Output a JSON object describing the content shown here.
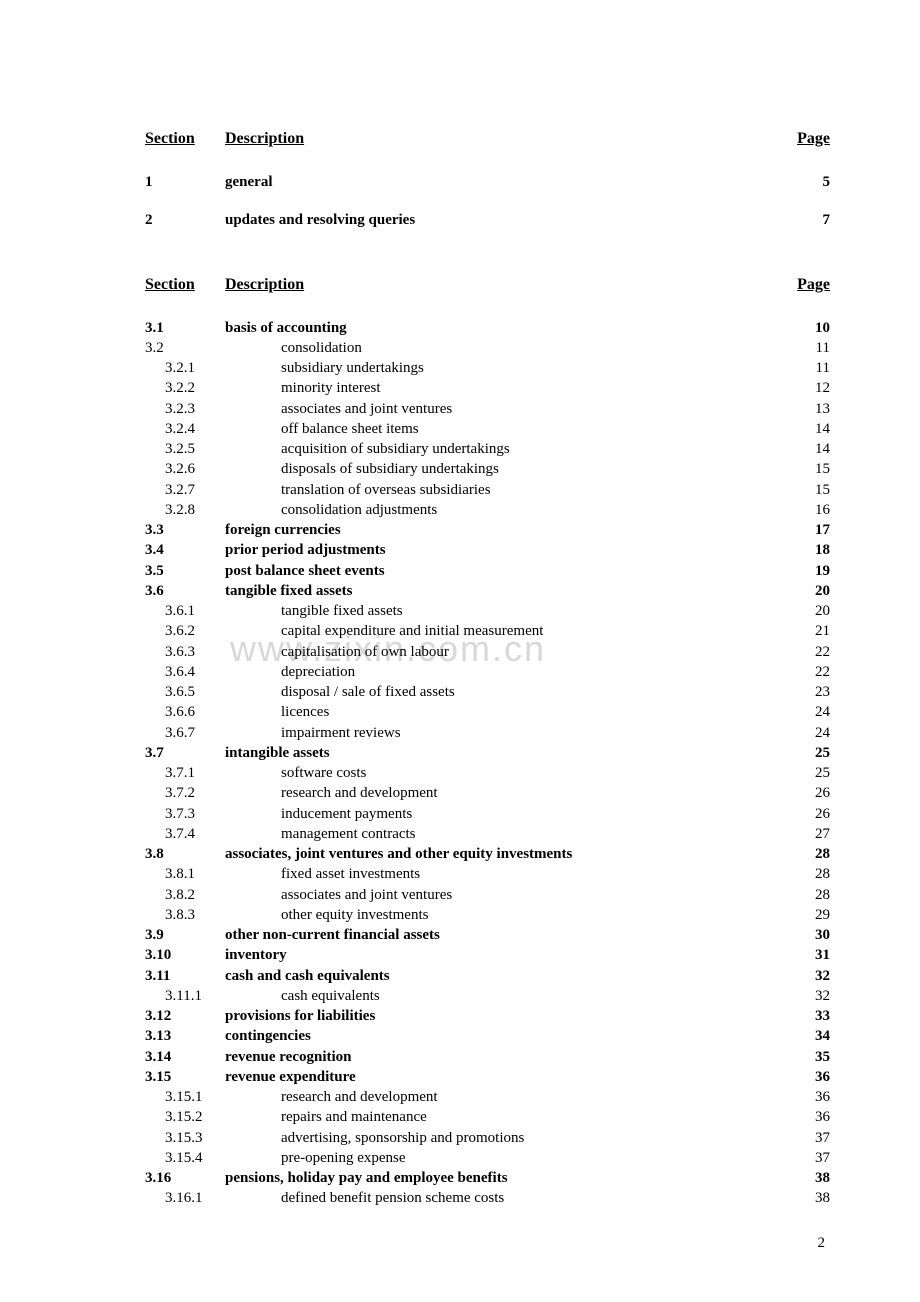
{
  "watermark_text": "www.zixin.com.cn",
  "page_number": "2",
  "headers": {
    "section": "Section",
    "description": "Description",
    "page": "Page"
  },
  "block1": [
    {
      "section": "1",
      "description": "general",
      "page": "5",
      "bold": true
    },
    {
      "section": "2",
      "description": "updates and resolving queries",
      "page": "7",
      "bold": true
    }
  ],
  "block2": [
    {
      "section": "3.1",
      "description": "basis of accounting",
      "page": "10",
      "bold": true,
      "indent": 0
    },
    {
      "section": "3.2",
      "description": "consolidation",
      "page": "11",
      "bold": false,
      "indent": 0
    },
    {
      "section": "3.2.1",
      "description": "subsidiary undertakings",
      "page": "11",
      "bold": false,
      "indent": 1
    },
    {
      "section": "3.2.2",
      "description": "minority interest",
      "page": "12",
      "bold": false,
      "indent": 1
    },
    {
      "section": "3.2.3",
      "description": "associates and joint ventures",
      "page": "13",
      "bold": false,
      "indent": 1
    },
    {
      "section": "3.2.4",
      "description": "off balance sheet items",
      "page": "14",
      "bold": false,
      "indent": 1
    },
    {
      "section": "3.2.5",
      "description": "acquisition of subsidiary undertakings",
      "page": "14",
      "bold": false,
      "indent": 1
    },
    {
      "section": "3.2.6",
      "description": "disposals of subsidiary undertakings",
      "page": "15",
      "bold": false,
      "indent": 1
    },
    {
      "section": "3.2.7",
      "description": "translation of overseas subsidiaries",
      "page": "15",
      "bold": false,
      "indent": 1
    },
    {
      "section": "3.2.8",
      "description": "consolidation adjustments",
      "page": "16",
      "bold": false,
      "indent": 1
    },
    {
      "section": "3.3",
      "description": "foreign currencies",
      "page": "17",
      "bold": true,
      "indent": 0
    },
    {
      "section": "3.4",
      "description": "prior period adjustments",
      "page": "18",
      "bold": true,
      "indent": 0
    },
    {
      "section": "3.5",
      "description": "post balance sheet events",
      "page": "19",
      "bold": true,
      "indent": 0
    },
    {
      "section": "3.6",
      "description": "tangible fixed assets",
      "page": "20",
      "bold": true,
      "indent": 0
    },
    {
      "section": "3.6.1",
      "description": "tangible fixed assets",
      "page": "20",
      "bold": false,
      "indent": 1
    },
    {
      "section": "3.6.2",
      "description": "capital expenditure and initial measurement",
      "page": "21",
      "bold": false,
      "indent": 1
    },
    {
      "section": "3.6.3",
      "description": "capitalisation of own labour",
      "page": "22",
      "bold": false,
      "indent": 1
    },
    {
      "section": "3.6.4",
      "description": "depreciation",
      "page": "22",
      "bold": false,
      "indent": 1
    },
    {
      "section": "3.6.5",
      "description": "disposal / sale of fixed assets",
      "page": "23",
      "bold": false,
      "indent": 1
    },
    {
      "section": "3.6.6",
      "description": "licences",
      "page": "24",
      "bold": false,
      "indent": 1
    },
    {
      "section": "3.6.7",
      "description": "impairment reviews",
      "page": "24",
      "bold": false,
      "indent": 1
    },
    {
      "section": "3.7",
      "description": "intangible assets",
      "page": "25",
      "bold": true,
      "indent": 0
    },
    {
      "section": "3.7.1",
      "description": "software costs",
      "page": "25",
      "bold": false,
      "indent": 1
    },
    {
      "section": "3.7.2",
      "description": "research and development",
      "page": "26",
      "bold": false,
      "indent": 1
    },
    {
      "section": "3.7.3",
      "description": "inducement payments",
      "page": "26",
      "bold": false,
      "indent": 1
    },
    {
      "section": "3.7.4",
      "description": "management contracts",
      "page": "27",
      "bold": false,
      "indent": 1
    },
    {
      "section": "3.8",
      "description": "associates, joint ventures and other equity investments",
      "page": "28",
      "bold": true,
      "indent": 0
    },
    {
      "section": "3.8.1",
      "description": "fixed asset investments",
      "page": "28",
      "bold": false,
      "indent": 1
    },
    {
      "section": "3.8.2",
      "description": "associates and joint ventures",
      "page": "28",
      "bold": false,
      "indent": 1
    },
    {
      "section": "3.8.3",
      "description": "other equity investments",
      "page": "29",
      "bold": false,
      "indent": 1
    },
    {
      "section": "3.9",
      "description": "other non-current financial assets",
      "page": "30",
      "bold": true,
      "indent": 0
    },
    {
      "section": "3.10",
      "description": "inventory",
      "page": "31",
      "bold": true,
      "indent": 0
    },
    {
      "section": "3.11",
      "description": "cash and cash equivalents",
      "page": "32",
      "bold": true,
      "indent": 0
    },
    {
      "section": "3.11.1",
      "description": "cash equivalents",
      "page": "32",
      "bold": false,
      "indent": 1
    },
    {
      "section": "3.12",
      "description": "provisions for liabilities",
      "page": "33",
      "bold": true,
      "indent": 0
    },
    {
      "section": "3.13",
      "description": "contingencies",
      "page": "34",
      "bold": true,
      "indent": 0
    },
    {
      "section": "3.14",
      "description": "revenue recognition",
      "page": "35",
      "bold": true,
      "indent": 0
    },
    {
      "section": "3.15",
      "description": "revenue expenditure",
      "page": "36",
      "bold": true,
      "indent": 0
    },
    {
      "section": "3.15.1",
      "description": "research and development",
      "page": "36",
      "bold": false,
      "indent": 1
    },
    {
      "section": "3.15.2",
      "description": "repairs and maintenance",
      "page": "36",
      "bold": false,
      "indent": 1
    },
    {
      "section": "3.15.3",
      "description": "advertising, sponsorship and promotions",
      "page": "37",
      "bold": false,
      "indent": 1
    },
    {
      "section": "3.15.4",
      "description": "pre-opening expense",
      "page": "37",
      "bold": false,
      "indent": 1
    },
    {
      "section": "3.16",
      "description": "pensions, holiday pay and employee benefits",
      "page": "38",
      "bold": true,
      "indent": 0
    },
    {
      "section": "3.16.1",
      "description": "defined benefit pension scheme costs",
      "page": "38",
      "bold": false,
      "indent": 1
    }
  ]
}
